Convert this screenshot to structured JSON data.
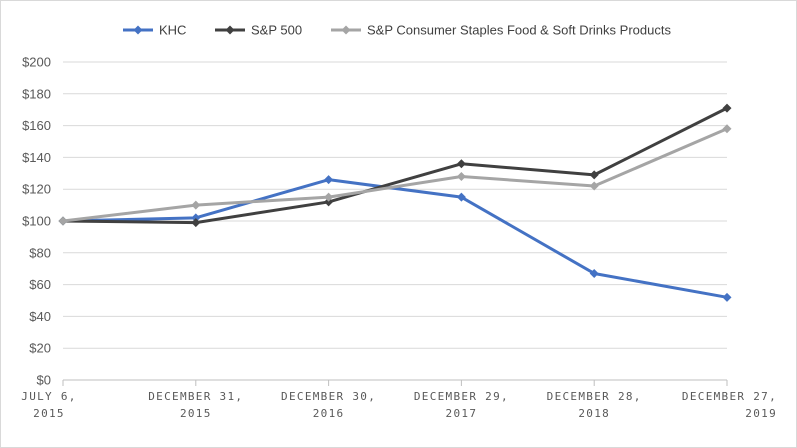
{
  "chart_data": {
    "type": "line",
    "title": "",
    "xlabel": "",
    "ylabel": "",
    "ylim": [
      0,
      200
    ],
    "yticks": [
      "$0",
      "$20",
      "$40",
      "$60",
      "$80",
      "$100",
      "$120",
      "$140",
      "$160",
      "$180",
      "$200"
    ],
    "ytick_values": [
      0,
      20,
      40,
      60,
      80,
      100,
      120,
      140,
      160,
      180,
      200
    ],
    "categories": [
      [
        "JULY 6,",
        "2015"
      ],
      [
        "DECEMBER 31,",
        "2015"
      ],
      [
        "DECEMBER 30,",
        "2016"
      ],
      [
        "DECEMBER 29,",
        "2017"
      ],
      [
        "DECEMBER 28,",
        "2018"
      ],
      [
        "DECEMBER 27,",
        "2019"
      ]
    ],
    "grid": "horizontal",
    "legend_position": "top",
    "series": [
      {
        "name": "KHC",
        "color": "#4472c4",
        "values": [
          100,
          102,
          126,
          115,
          67,
          52
        ]
      },
      {
        "name": "S&P 500",
        "color": "#404040",
        "values": [
          100,
          99,
          112,
          136,
          129,
          171
        ]
      },
      {
        "name": "S&P Consumer Staples Food & Soft Drinks Products",
        "color": "#a5a5a5",
        "values": [
          100,
          110,
          115,
          128,
          122,
          158
        ]
      }
    ]
  }
}
